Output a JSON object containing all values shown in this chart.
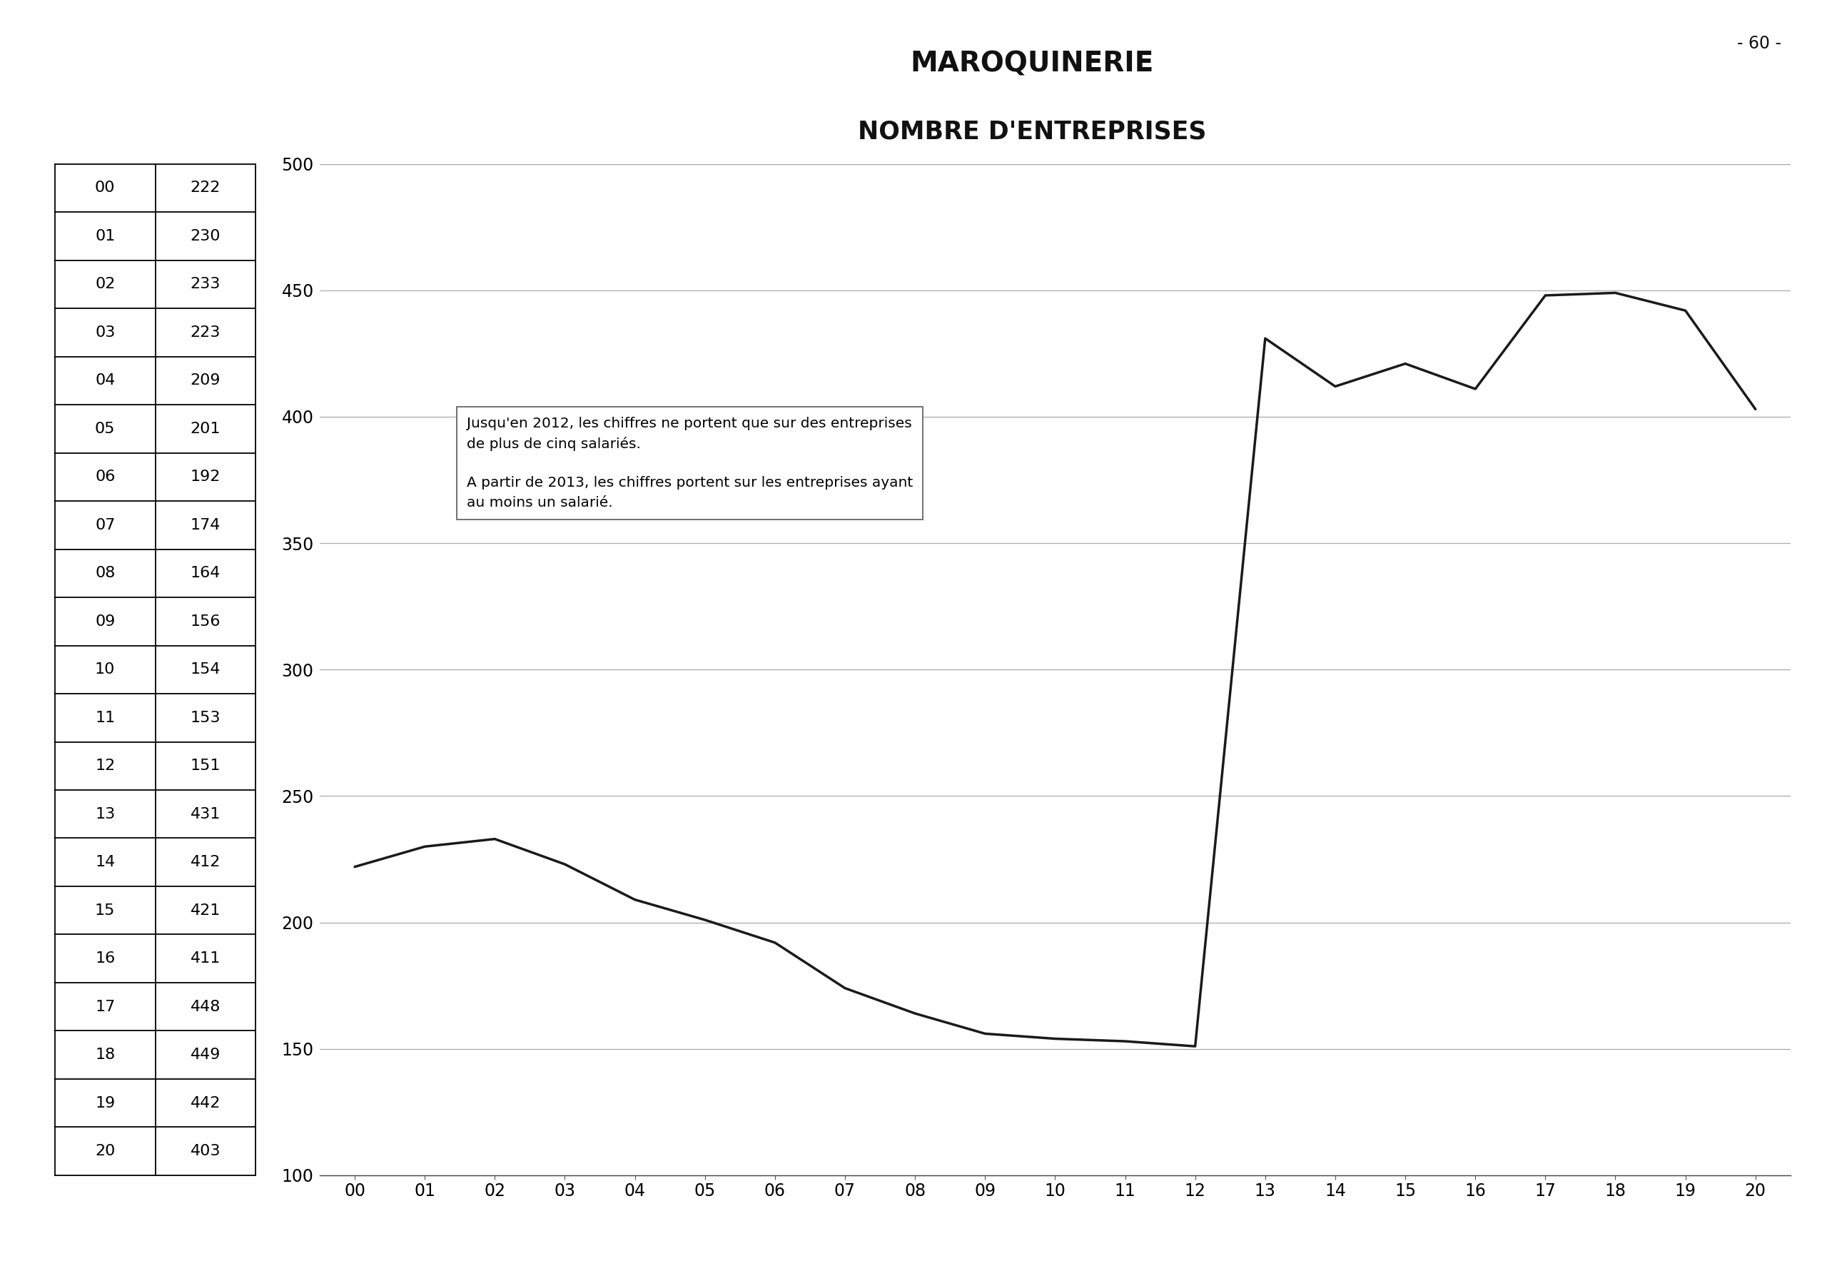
{
  "title": "MAROQUINERIE",
  "subtitle": "NOMBRE D'ENTREPRISES",
  "page_number": "- 60 -",
  "years": [
    "00",
    "01",
    "02",
    "03",
    "04",
    "05",
    "06",
    "07",
    "08",
    "09",
    "10",
    "11",
    "12",
    "13",
    "14",
    "15",
    "16",
    "17",
    "18",
    "19",
    "20"
  ],
  "values": [
    222,
    230,
    233,
    223,
    209,
    201,
    192,
    174,
    164,
    156,
    154,
    153,
    151,
    431,
    412,
    421,
    411,
    448,
    449,
    442,
    403
  ],
  "ylim": [
    100,
    500
  ],
  "yticks": [
    100,
    150,
    200,
    250,
    300,
    350,
    400,
    450,
    500
  ],
  "annotation_line1": "Jusqu'en 2012, les chiffres ne portent que sur des entreprises",
  "annotation_line2": "de plus de cinq salariés.",
  "annotation_line3": "A partir de 2013, les chiffres portent sur les entreprises ayant",
  "annotation_line4": "au moins un salarié.",
  "line_color": "#1a1a1a",
  "background_color": "#ffffff",
  "grid_color": "#aaaaaa",
  "table_data": [
    [
      "00",
      "222"
    ],
    [
      "01",
      "230"
    ],
    [
      "02",
      "233"
    ],
    [
      "03",
      "223"
    ],
    [
      "04",
      "209"
    ],
    [
      "05",
      "201"
    ],
    [
      "06",
      "192"
    ],
    [
      "07",
      "174"
    ],
    [
      "08",
      "164"
    ],
    [
      "09",
      "156"
    ],
    [
      "10",
      "154"
    ],
    [
      "11",
      "153"
    ],
    [
      "12",
      "151"
    ],
    [
      "13",
      "431"
    ],
    [
      "14",
      "412"
    ],
    [
      "15",
      "421"
    ],
    [
      "16",
      "411"
    ],
    [
      "17",
      "448"
    ],
    [
      "18",
      "449"
    ],
    [
      "19",
      "442"
    ],
    [
      "20",
      "403"
    ]
  ]
}
